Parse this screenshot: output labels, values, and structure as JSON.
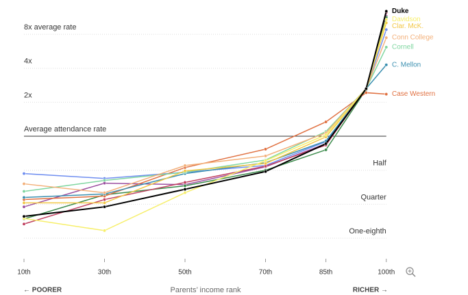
{
  "chart_data": {
    "type": "line",
    "log_scale_y": true,
    "x_label": "Parents’ income rank",
    "left_note": "← POORER",
    "right_note": "RICHER →",
    "x": [
      10,
      30,
      50,
      70,
      85,
      95,
      100
    ],
    "xlim": [
      10,
      100
    ],
    "xticks": [
      {
        "value": 10,
        "label": "10th"
      },
      {
        "value": 30,
        "label": "30th"
      },
      {
        "value": 50,
        "label": "50th"
      },
      {
        "value": 70,
        "label": "70th"
      },
      {
        "value": 85,
        "label": "85th"
      },
      {
        "value": 100,
        "label": "100th"
      }
    ],
    "ylim": [
      0.08,
      14
    ],
    "yticks": [
      {
        "value": 8,
        "label": "8x average rate"
      },
      {
        "value": 4,
        "label": "4x"
      },
      {
        "value": 2,
        "label": "2x"
      },
      {
        "value": 1,
        "label": "Average attendance rate"
      },
      {
        "value": 0.5,
        "label": "Half"
      },
      {
        "value": 0.25,
        "label": "Quarter"
      },
      {
        "value": 0.125,
        "label": "One-eighth"
      }
    ],
    "grid": true,
    "series": [
      {
        "color": "#6f8ef0",
        "values": [
          0.467,
          0.423,
          0.48,
          0.551,
          0.895,
          2.64,
          8.8
        ]
      },
      {
        "color": "#9b4fa0",
        "values": [
          0.237,
          0.384,
          0.373,
          0.536,
          0.859,
          2.6,
          11.6
        ]
      },
      {
        "color": "#3a8a4a",
        "values": [
          0.185,
          0.303,
          0.364,
          0.5,
          0.758,
          2.6,
          11.3
        ]
      },
      {
        "color": "#c04060",
        "values": [
          0.167,
          0.275,
          0.39,
          0.543,
          0.835,
          2.64,
          12.5
        ]
      },
      {
        "name": "Case Western",
        "color": "#e07040",
        "values": [
          0.275,
          0.295,
          0.528,
          0.768,
          1.34,
          2.43,
          2.36
        ]
      },
      {
        "name": "C. Mellon",
        "color": "#3a8fb0",
        "values": [
          0.287,
          0.308,
          0.467,
          0.583,
          0.908,
          2.64,
          4.29
        ]
      },
      {
        "name": "Cornell",
        "color": "#7fd6a0",
        "values": [
          0.325,
          0.406,
          0.48,
          0.616,
          1.1,
          2.64,
          6.15
        ]
      },
      {
        "name": "Conn College",
        "color": "#f3b07a",
        "values": [
          0.379,
          0.316,
          0.55,
          0.669,
          1.07,
          2.64,
          7.46
        ]
      },
      {
        "name": "Clar. McK.",
        "color": "#f2c744",
        "values": [
          0.257,
          0.257,
          0.493,
          0.574,
          0.986,
          2.64,
          10.1
        ]
      },
      {
        "name": "Davidson",
        "color": "#f7ef6a",
        "values": [
          0.187,
          0.146,
          0.316,
          0.607,
          1.03,
          2.64,
          10.8
        ]
      },
      {
        "name": "Duke",
        "color": "#000000",
        "values": [
          0.195,
          0.237,
          0.339,
          0.487,
          0.859,
          2.64,
          12.8
        ]
      }
    ]
  }
}
